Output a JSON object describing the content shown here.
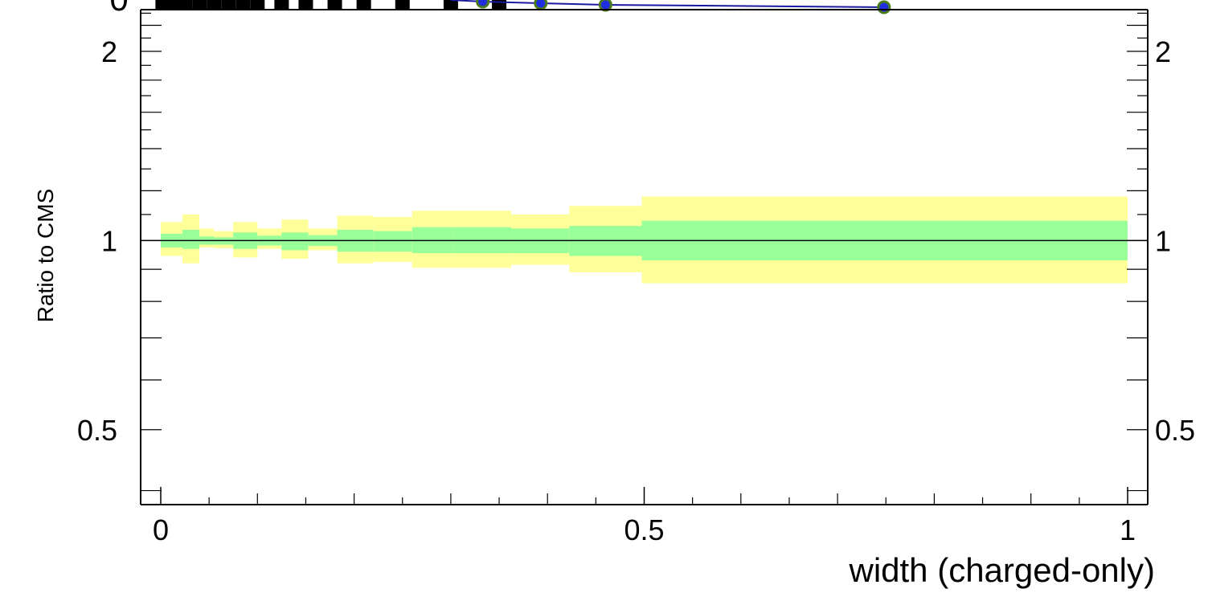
{
  "chart_data": {
    "type": "ratio-band",
    "xlabel": "width (charged-only)",
    "ylabel": "Ratio to CMS",
    "xlim": [
      -0.01,
      1.01
    ],
    "ylim": [
      0.38,
      2.33
    ],
    "x_ticks": [
      {
        "v": 0,
        "label": "0"
      },
      {
        "v": 0.5,
        "label": "0.5"
      },
      {
        "v": 1,
        "label": "1"
      }
    ],
    "y_ticks": [
      {
        "v": 0.5,
        "label": "0.5"
      },
      {
        "v": 1,
        "label": "1"
      },
      {
        "v": 2,
        "label": "2"
      }
    ],
    "reference_line": 1,
    "bins": [
      {
        "x0": 0.0,
        "x1": 0.0225,
        "stat": [
          0.975,
          1.025
        ],
        "total": [
          0.945,
          1.07
        ]
      },
      {
        "x0": 0.0225,
        "x1": 0.04,
        "stat": [
          0.97,
          1.04
        ],
        "total": [
          0.92,
          1.1
        ]
      },
      {
        "x0": 0.04,
        "x1": 0.055,
        "stat": [
          0.985,
          1.015
        ],
        "total": [
          0.975,
          1.045
        ]
      },
      {
        "x0": 0.055,
        "x1": 0.075,
        "stat": [
          0.985,
          1.012
        ],
        "total": [
          0.972,
          1.035
        ]
      },
      {
        "x0": 0.075,
        "x1": 0.1,
        "stat": [
          0.97,
          1.03
        ],
        "total": [
          0.94,
          1.07
        ]
      },
      {
        "x0": 0.1,
        "x1": 0.125,
        "stat": [
          0.982,
          1.018
        ],
        "total": [
          0.97,
          1.045
        ]
      },
      {
        "x0": 0.125,
        "x1": 0.1525,
        "stat": [
          0.965,
          1.03
        ],
        "total": [
          0.935,
          1.08
        ]
      },
      {
        "x0": 0.1525,
        "x1": 0.1825,
        "stat": [
          0.98,
          1.02
        ],
        "total": [
          0.965,
          1.045
        ]
      },
      {
        "x0": 0.1825,
        "x1": 0.22,
        "stat": [
          0.96,
          1.04
        ],
        "total": [
          0.92,
          1.095
        ]
      },
      {
        "x0": 0.22,
        "x1": 0.26,
        "stat": [
          0.96,
          1.035
        ],
        "total": [
          0.925,
          1.09
        ]
      },
      {
        "x0": 0.26,
        "x1": 0.3025,
        "stat": [
          0.955,
          1.05
        ],
        "total": [
          0.905,
          1.115
        ]
      },
      {
        "x0": 0.3025,
        "x1": 0.3625,
        "stat": [
          0.955,
          1.05
        ],
        "total": [
          0.905,
          1.115
        ]
      },
      {
        "x0": 0.3625,
        "x1": 0.4225,
        "stat": [
          0.955,
          1.045
        ],
        "total": [
          0.915,
          1.1
        ]
      },
      {
        "x0": 0.4225,
        "x1": 0.4975,
        "stat": [
          0.945,
          1.055
        ],
        "total": [
          0.89,
          1.135
        ]
      },
      {
        "x0": 0.4975,
        "x1": 1.0,
        "stat": [
          0.93,
          1.075
        ],
        "total": [
          0.855,
          1.175
        ]
      }
    ],
    "colors": {
      "stat_band": "#99ff99",
      "total_band": "#ffff99",
      "axis": "#000000",
      "series_line": "#1a1aa0",
      "series_marker": "#1f2fe0",
      "series_marker_edge": "#4a7a1a",
      "data_marker": "#000000"
    },
    "upper_panel_fragment": {
      "data_x": [
        0.002,
        0.013,
        0.025,
        0.04,
        0.055,
        0.07,
        0.085,
        0.1,
        0.125,
        0.15,
        0.18,
        0.21,
        0.25,
        0.3,
        0.35
      ],
      "overlay_markers_x": [
        0.333,
        0.393,
        0.46,
        0.748
      ]
    }
  }
}
